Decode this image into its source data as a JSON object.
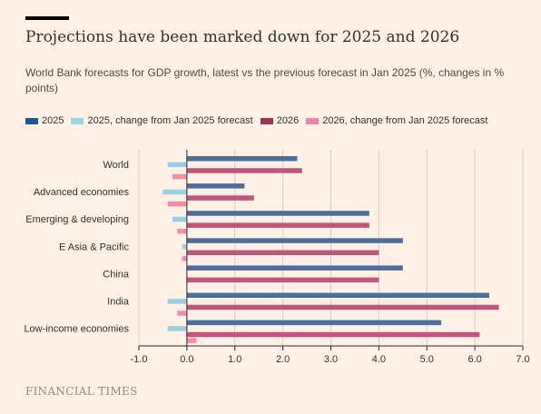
{
  "title": "Projections have been marked down for 2025 and 2026",
  "subtitle": "World Bank forecasts for GDP growth, latest vs the previous forecast in Jan 2025 (%, changes in % points)",
  "source": "FINANCIAL TIMES",
  "chart_data": {
    "type": "bar",
    "orientation": "horizontal",
    "categories": [
      "World",
      "Advanced economies",
      "Emerging & developing",
      "E Asia & Pacific",
      "China",
      "India",
      "Low-income economies"
    ],
    "series": [
      {
        "name": "2025",
        "color": "#4E6E9A",
        "values": [
          2.3,
          1.2,
          3.8,
          4.5,
          4.5,
          6.3,
          5.3
        ]
      },
      {
        "name": "2025, change from Jan 2025 forecast",
        "color": "#9BCDE3",
        "values": [
          -0.4,
          -0.5,
          -0.3,
          -0.1,
          0.0,
          -0.4,
          -0.4
        ]
      },
      {
        "name": "2026",
        "color": "#C2557A",
        "values": [
          2.4,
          1.4,
          3.8,
          4.0,
          4.0,
          6.5,
          6.1
        ]
      },
      {
        "name": "2026, change from Jan 2025 forecast",
        "color": "#F48BAA",
        "values": [
          -0.3,
          -0.4,
          -0.2,
          -0.1,
          0.0,
          -0.2,
          0.2
        ]
      }
    ],
    "xlim": [
      -1.0,
      7.0
    ],
    "xticks": [
      "-1.0",
      "0.0",
      "1.0",
      "2.0",
      "3.0",
      "4.0",
      "5.0",
      "6.0",
      "7.0"
    ],
    "xlabel": "",
    "ylabel": "",
    "grid": "vertical",
    "legend_position": "top"
  },
  "legend": [
    {
      "label": "2025",
      "color": "#1F5A96"
    },
    {
      "label": "2025, change from Jan 2025 forecast",
      "color": "#9BD3E8"
    },
    {
      "label": "2026",
      "color": "#A42D59"
    },
    {
      "label": "2026, change from Jan 2025 forecast",
      "color": "#F77FA8"
    }
  ]
}
